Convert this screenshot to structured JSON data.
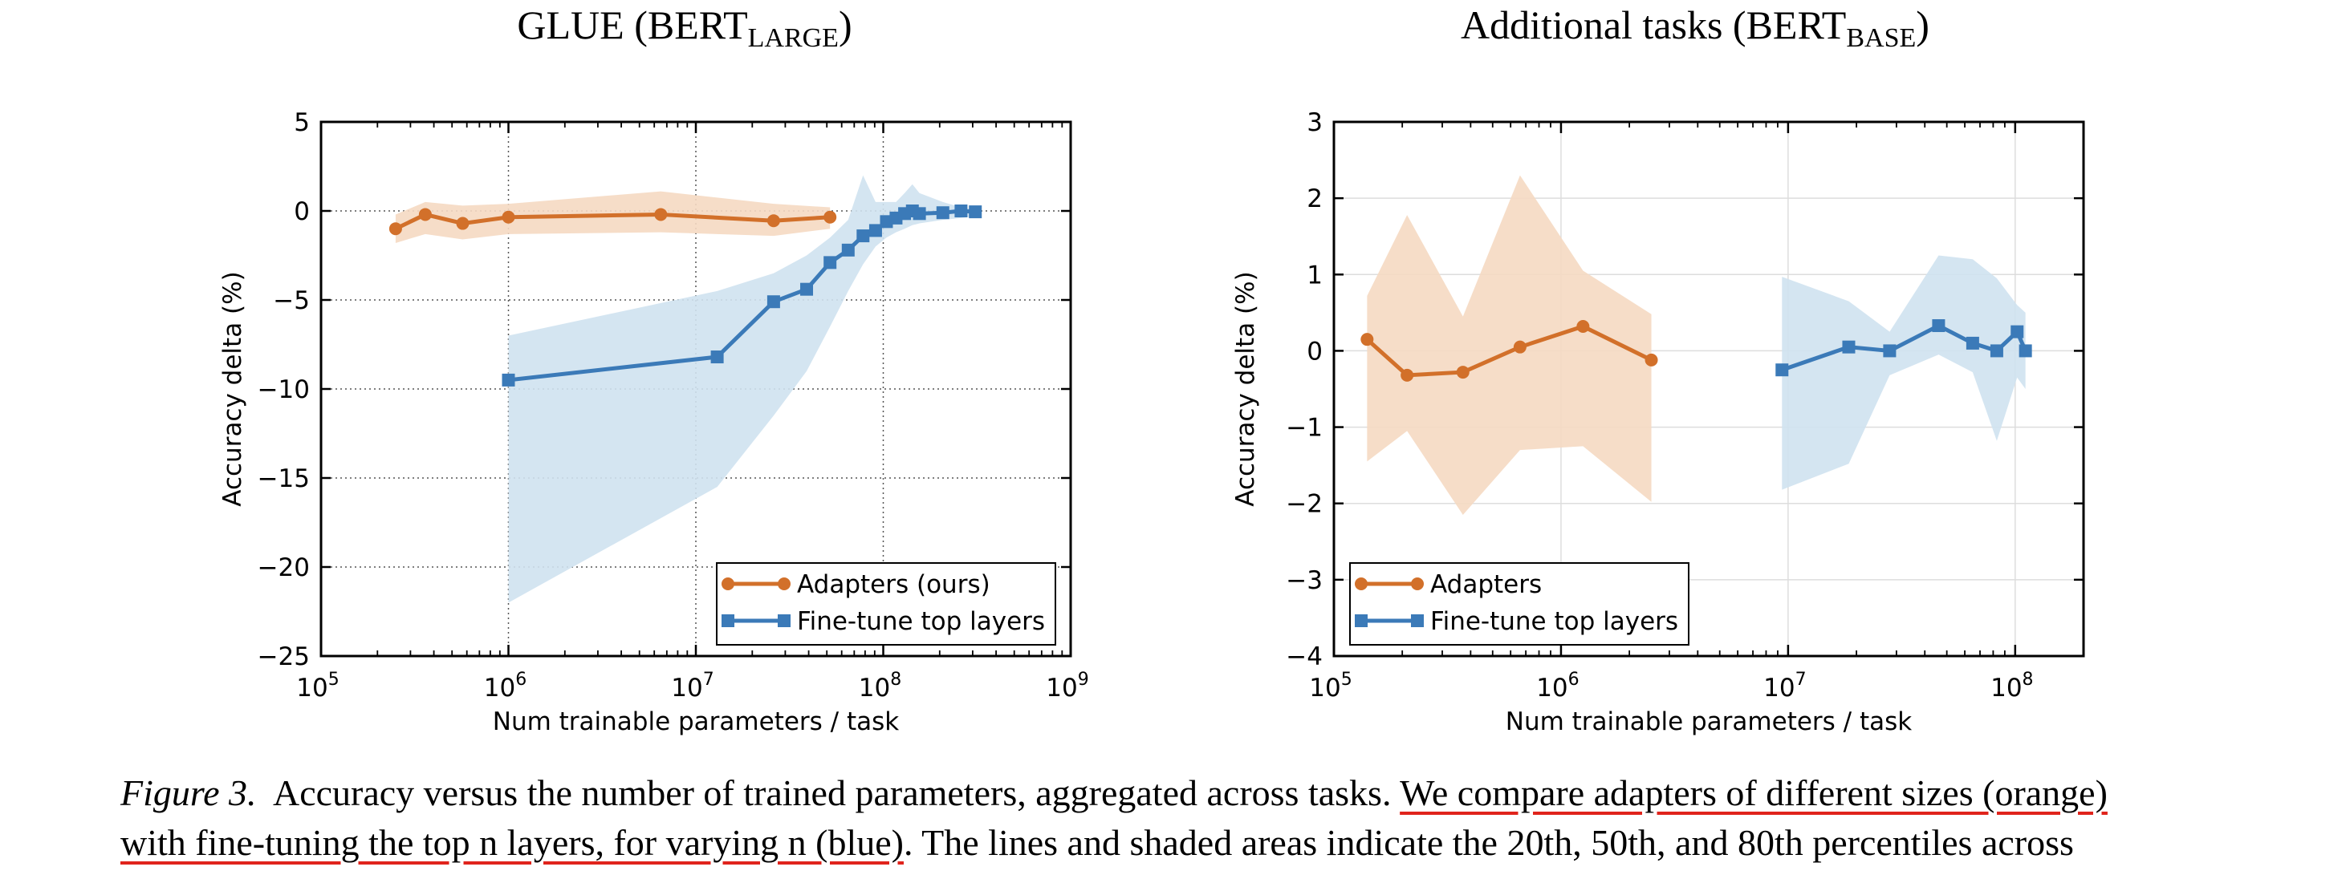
{
  "chart_data": [
    {
      "type": "line",
      "title": "GLUE (BERT",
      "title_subscript": "LARGE",
      "title_suffix": ")",
      "xlabel": "Num trainable parameters / task",
      "ylabel": "Accuracy delta (%)",
      "x_scale": "log",
      "xlim": [
        100000,
        1000000000
      ],
      "ylim": [
        -25,
        5
      ],
      "x_ticks": [
        {
          "value": 100000,
          "base": "10",
          "exp": "5"
        },
        {
          "value": 1000000,
          "base": "10",
          "exp": "6"
        },
        {
          "value": 10000000,
          "base": "10",
          "exp": "7"
        },
        {
          "value": 100000000,
          "base": "10",
          "exp": "8"
        },
        {
          "value": 1000000000,
          "base": "10",
          "exp": "9"
        }
      ],
      "y_ticks": [
        {
          "value": 5,
          "label": "5"
        },
        {
          "value": 0,
          "label": "0"
        },
        {
          "value": -5,
          "label": "−5"
        },
        {
          "value": -10,
          "label": "−10"
        },
        {
          "value": -15,
          "label": "−15"
        },
        {
          "value": -20,
          "label": "−20"
        },
        {
          "value": -25,
          "label": "−25"
        }
      ],
      "grid": "dotted",
      "legend_position": "lower-right",
      "series": [
        {
          "name": "Adapters (ours)",
          "color": "#d2702a",
          "band_color": "#f5d9c2",
          "marker": "circle",
          "x": [
            250000,
            360000,
            570000,
            1000000,
            6500000,
            26000000,
            52000000
          ],
          "y": [
            -1.0,
            -0.2,
            -0.7,
            -0.35,
            -0.2,
            -0.55,
            -0.35
          ],
          "band_low": [
            -1.8,
            -1.3,
            -1.6,
            -1.3,
            -1.2,
            -1.4,
            -1.0
          ],
          "band_high": [
            -0.2,
            0.5,
            0.3,
            0.4,
            1.1,
            0.4,
            0.2
          ]
        },
        {
          "name": "Fine-tune top layers",
          "color": "#3b7ab8",
          "band_color": "#cfe2f0",
          "marker": "square",
          "x": [
            1000000,
            13000000,
            26000000,
            39000000,
            52000000,
            65000000,
            78000000,
            91000000,
            104000000,
            117000000,
            130000000,
            143000000,
            156000000,
            208000000,
            260000000,
            310000000
          ],
          "y": [
            -9.5,
            -8.2,
            -5.1,
            -4.4,
            -2.9,
            -2.2,
            -1.4,
            -1.1,
            -0.6,
            -0.4,
            -0.15,
            0.0,
            -0.15,
            -0.1,
            0.0,
            -0.05
          ],
          "band_low": [
            -22.0,
            -15.5,
            -11.5,
            -9.0,
            -6.5,
            -4.5,
            -3.0,
            -2.0,
            -1.5,
            -1.2,
            -1.0,
            -0.8,
            -0.7,
            -0.5,
            -0.4,
            -0.3
          ],
          "band_high": [
            -7.0,
            -4.5,
            -3.5,
            -2.5,
            -1.5,
            -0.5,
            2.0,
            0.5,
            0.5,
            0.5,
            1.0,
            1.5,
            1.0,
            0.5,
            0.2,
            0.1
          ]
        }
      ]
    },
    {
      "type": "line",
      "title": "Additional tasks (BERT",
      "title_subscript": "BASE",
      "title_suffix": ")",
      "xlabel": "Num trainable parameters / task",
      "ylabel": "Accuracy delta (%)",
      "x_scale": "log",
      "xlim": [
        100000,
        200000000
      ],
      "ylim": [
        -4,
        3
      ],
      "x_ticks": [
        {
          "value": 100000,
          "base": "10",
          "exp": "5"
        },
        {
          "value": 1000000,
          "base": "10",
          "exp": "6"
        },
        {
          "value": 10000000,
          "base": "10",
          "exp": "7"
        },
        {
          "value": 100000000,
          "base": "10",
          "exp": "8"
        }
      ],
      "y_ticks": [
        {
          "value": 3,
          "label": "3"
        },
        {
          "value": 2,
          "label": "2"
        },
        {
          "value": 1,
          "label": "1"
        },
        {
          "value": 0,
          "label": "0"
        },
        {
          "value": -1,
          "label": "−1"
        },
        {
          "value": -2,
          "label": "−2"
        },
        {
          "value": -3,
          "label": "−3"
        },
        {
          "value": -4,
          "label": "−4"
        }
      ],
      "grid": "solid-light",
      "legend_position": "lower-left",
      "series": [
        {
          "name": "Adapters",
          "color": "#d2702a",
          "band_color": "#f5d9c2",
          "marker": "circle",
          "x": [
            140000,
            210000,
            370000,
            660000,
            1250000,
            2500000
          ],
          "y": [
            0.15,
            -0.32,
            -0.28,
            0.05,
            0.32,
            -0.12
          ],
          "band_low": [
            -1.45,
            -1.05,
            -2.15,
            -1.3,
            -1.25,
            -1.98
          ],
          "band_high": [
            0.72,
            1.78,
            0.45,
            2.3,
            1.05,
            0.48
          ]
        },
        {
          "name": "Fine-tune top layers",
          "color": "#3b7ab8",
          "band_color": "#cfe2f0",
          "marker": "square",
          "x": [
            9400000,
            18500000,
            28000000,
            46000000,
            65000000,
            83000000,
            102000000,
            111000000
          ],
          "y": [
            -0.25,
            0.05,
            0.0,
            0.33,
            0.1,
            0.0,
            0.25,
            0.0
          ],
          "band_low": [
            -1.82,
            -1.48,
            -0.32,
            -0.05,
            -0.28,
            -1.18,
            -0.35,
            -0.5
          ],
          "band_high": [
            0.97,
            0.65,
            0.25,
            1.25,
            1.2,
            0.95,
            0.6,
            0.5
          ]
        }
      ]
    }
  ],
  "caption": {
    "label": "Figure 3.",
    "text1": "Accuracy versus the number of trained parameters, aggregated across tasks.",
    "underlined1": "We compare adapters of different sizes (orange)",
    "underlined2": "with fine-tuning the top n layers, for varying n (blue)",
    "text2": ". The lines and shaded areas indicate the 20th, 50th, and 80th percentiles across"
  }
}
